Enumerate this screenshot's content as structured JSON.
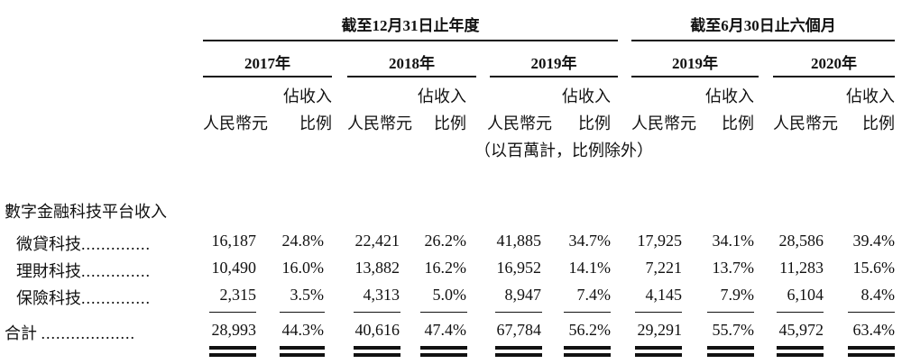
{
  "period_headers": {
    "dec31": "截至12月31日止年度",
    "jun30": "截至6月30日止六個月"
  },
  "years": [
    "2017年",
    "2018年",
    "2019年",
    "2019年",
    "2020年"
  ],
  "col_headers": {
    "rmb": "人民幣元",
    "pct_line1": "佔收入",
    "pct_line2": "比例",
    "note": "（以百萬計，比例除外）"
  },
  "section_title": "數字金融科技平台收入",
  "rows": [
    {
      "label": "微貸科技",
      "dots": "..............",
      "values": [
        "16,187",
        "24.8%",
        "22,421",
        "26.2%",
        "41,885",
        "34.7%",
        "17,925",
        "34.1%",
        "28,586",
        "39.4%"
      ]
    },
    {
      "label": "理財科技",
      "dots": "..............",
      "values": [
        "10,490",
        "16.0%",
        "13,882",
        "16.2%",
        "16,952",
        "14.1%",
        "7,221",
        "13.7%",
        "11,283",
        "15.6%"
      ]
    },
    {
      "label": "保險科技",
      "dots": "..............",
      "values": [
        "2,315",
        "3.5%",
        "4,313",
        "5.0%",
        "8,947",
        "7.4%",
        "4,145",
        "7.9%",
        "6,104",
        "8.4%"
      ]
    }
  ],
  "total": {
    "label": "合計",
    "dots": "...................",
    "values": [
      "28,993",
      "44.3%",
      "40,616",
      "47.4%",
      "67,784",
      "56.2%",
      "29,291",
      "55.7%",
      "45,972",
      "63.4%"
    ]
  }
}
